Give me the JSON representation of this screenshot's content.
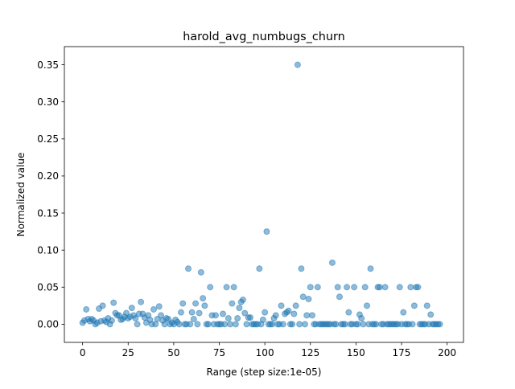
{
  "chart_data": {
    "type": "scatter",
    "title": "harold_avg_numbugs_churn",
    "xlabel": "Range (step size:1e-05)",
    "ylabel": "Normalized value",
    "xlim": [
      -10,
      209
    ],
    "ylim": [
      -0.0245,
      0.3745
    ],
    "xticks": [
      0,
      25,
      50,
      75,
      100,
      125,
      150,
      175,
      200
    ],
    "xtick_labels": [
      "0",
      "25",
      "50",
      "75",
      "100",
      "125",
      "150",
      "175",
      "200"
    ],
    "yticks": [
      0.0,
      0.05,
      0.1,
      0.15,
      0.2,
      0.25,
      0.3,
      0.35
    ],
    "ytick_labels": [
      "0.00",
      "0.05",
      "0.10",
      "0.15",
      "0.20",
      "0.25",
      "0.30",
      "0.35"
    ],
    "grid": false,
    "legend": "none",
    "point_color": "#1f77b4",
    "point_alpha": 0.5,
    "points": [
      [
        0,
        0.002
      ],
      [
        1,
        0.005
      ],
      [
        2,
        0.02
      ],
      [
        3,
        0.007
      ],
      [
        4,
        0.004
      ],
      [
        5,
        0.007
      ],
      [
        6,
        0.005
      ],
      [
        7,
        0.0
      ],
      [
        8,
        0.002
      ],
      [
        9,
        0.021
      ],
      [
        10,
        0.004
      ],
      [
        11,
        0.025
      ],
      [
        12,
        0.005
      ],
      [
        13,
        0.003
      ],
      [
        14,
        0.008
      ],
      [
        15,
        0.0
      ],
      [
        16,
        0.005
      ],
      [
        17,
        0.029
      ],
      [
        18,
        0.015
      ],
      [
        19,
        0.012
      ],
      [
        20,
        0.012
      ],
      [
        21,
        0.006
      ],
      [
        22,
        0.007
      ],
      [
        23,
        0.01
      ],
      [
        24,
        0.015
      ],
      [
        25,
        0.008
      ],
      [
        26,
        0.01
      ],
      [
        27,
        0.022
      ],
      [
        28,
        0.012
      ],
      [
        29,
        0.008
      ],
      [
        30,
        0.0
      ],
      [
        31,
        0.014
      ],
      [
        32,
        0.03
      ],
      [
        33,
        0.014
      ],
      [
        34,
        0.009
      ],
      [
        35,
        0.002
      ],
      [
        36,
        0.012
      ],
      [
        37,
        0.006
      ],
      [
        38,
        0.0
      ],
      [
        39,
        0.02
      ],
      [
        40,
        0.0
      ],
      [
        41,
        0.007
      ],
      [
        42,
        0.024
      ],
      [
        43,
        0.012
      ],
      [
        44,
        0.005
      ],
      [
        45,
        0.0
      ],
      [
        46,
        0.008
      ],
      [
        47,
        0.007
      ],
      [
        48,
        0.0
      ],
      [
        49,
        0.002
      ],
      [
        50,
        0.0
      ],
      [
        51,
        0.006
      ],
      [
        52,
        0.003
      ],
      [
        53,
        0.0
      ],
      [
        54,
        0.016
      ],
      [
        55,
        0.028
      ],
      [
        56,
        0.0
      ],
      [
        57,
        0.0
      ],
      [
        58,
        0.075
      ],
      [
        59,
        0.0
      ],
      [
        60,
        0.016
      ],
      [
        61,
        0.007
      ],
      [
        62,
        0.028
      ],
      [
        63,
        0.0
      ],
      [
        64,
        0.015
      ],
      [
        65,
        0.07
      ],
      [
        66,
        0.035
      ],
      [
        67,
        0.025
      ],
      [
        68,
        0.0
      ],
      [
        69,
        0.0
      ],
      [
        70,
        0.05
      ],
      [
        71,
        0.012
      ],
      [
        72,
        0.0
      ],
      [
        73,
        0.012
      ],
      [
        74,
        0.0
      ],
      [
        75,
        0.0
      ],
      [
        76,
        0.0
      ],
      [
        77,
        0.014
      ],
      [
        78,
        0.0
      ],
      [
        79,
        0.05
      ],
      [
        80,
        0.008
      ],
      [
        81,
        0.0
      ],
      [
        82,
        0.028
      ],
      [
        83,
        0.05
      ],
      [
        84,
        0.0
      ],
      [
        85,
        0.008
      ],
      [
        86,
        0.022
      ],
      [
        87,
        0.03
      ],
      [
        88,
        0.033
      ],
      [
        89,
        0.015
      ],
      [
        90,
        0.0
      ],
      [
        91,
        0.009
      ],
      [
        92,
        0.009
      ],
      [
        93,
        0.0
      ],
      [
        94,
        0.0
      ],
      [
        95,
        0.0
      ],
      [
        96,
        0.0
      ],
      [
        97,
        0.075
      ],
      [
        98,
        0.0
      ],
      [
        99,
        0.006
      ],
      [
        100,
        0.016
      ],
      [
        101,
        0.125
      ],
      [
        102,
        0.0
      ],
      [
        103,
        0.0
      ],
      [
        104,
        0.0
      ],
      [
        105,
        0.008
      ],
      [
        106,
        0.012
      ],
      [
        107,
        0.0
      ],
      [
        108,
        0.0
      ],
      [
        109,
        0.025
      ],
      [
        110,
        0.0
      ],
      [
        111,
        0.014
      ],
      [
        112,
        0.016
      ],
      [
        113,
        0.018
      ],
      [
        114,
        0.0
      ],
      [
        115,
        0.0
      ],
      [
        116,
        0.014
      ],
      [
        117,
        0.025
      ],
      [
        118,
        0.35
      ],
      [
        119,
        0.0
      ],
      [
        120,
        0.075
      ],
      [
        121,
        0.037
      ],
      [
        122,
        0.0
      ],
      [
        123,
        0.012
      ],
      [
        124,
        0.034
      ],
      [
        125,
        0.05
      ],
      [
        126,
        0.012
      ],
      [
        127,
        0.0
      ],
      [
        128,
        0.0
      ],
      [
        129,
        0.05
      ],
      [
        130,
        0.0
      ],
      [
        131,
        0.0
      ],
      [
        132,
        0.0
      ],
      [
        133,
        0.0
      ],
      [
        134,
        0.0
      ],
      [
        135,
        0.0
      ],
      [
        136,
        0.0
      ],
      [
        137,
        0.083
      ],
      [
        138,
        0.0
      ],
      [
        139,
        0.0
      ],
      [
        140,
        0.05
      ],
      [
        141,
        0.037
      ],
      [
        142,
        0.0
      ],
      [
        143,
        0.0
      ],
      [
        144,
        0.0
      ],
      [
        145,
        0.05
      ],
      [
        146,
        0.016
      ],
      [
        147,
        0.0
      ],
      [
        148,
        0.0
      ],
      [
        149,
        0.05
      ],
      [
        150,
        0.0
      ],
      [
        151,
        0.0
      ],
      [
        152,
        0.013
      ],
      [
        153,
        0.008
      ],
      [
        154,
        0.0
      ],
      [
        155,
        0.05
      ],
      [
        156,
        0.025
      ],
      [
        157,
        0.0
      ],
      [
        158,
        0.075
      ],
      [
        159,
        0.0
      ],
      [
        160,
        0.0
      ],
      [
        161,
        0.0
      ],
      [
        162,
        0.05
      ],
      [
        163,
        0.05
      ],
      [
        164,
        0.0
      ],
      [
        165,
        0.0
      ],
      [
        166,
        0.05
      ],
      [
        167,
        0.0
      ],
      [
        168,
        0.0
      ],
      [
        169,
        0.0
      ],
      [
        170,
        0.0
      ],
      [
        171,
        0.0
      ],
      [
        172,
        0.0
      ],
      [
        173,
        0.0
      ],
      [
        174,
        0.05
      ],
      [
        175,
        0.0
      ],
      [
        176,
        0.016
      ],
      [
        177,
        0.0
      ],
      [
        178,
        0.0
      ],
      [
        179,
        0.0
      ],
      [
        180,
        0.05
      ],
      [
        181,
        0.0
      ],
      [
        182,
        0.025
      ],
      [
        183,
        0.05
      ],
      [
        184,
        0.05
      ],
      [
        185,
        0.0
      ],
      [
        186,
        0.0
      ],
      [
        187,
        0.0
      ],
      [
        188,
        0.0
      ],
      [
        189,
        0.025
      ],
      [
        190,
        0.0
      ],
      [
        191,
        0.013
      ],
      [
        192,
        0.0
      ],
      [
        193,
        0.0
      ],
      [
        194,
        0.0
      ],
      [
        195,
        0.0
      ],
      [
        196,
        0.0
      ]
    ]
  }
}
